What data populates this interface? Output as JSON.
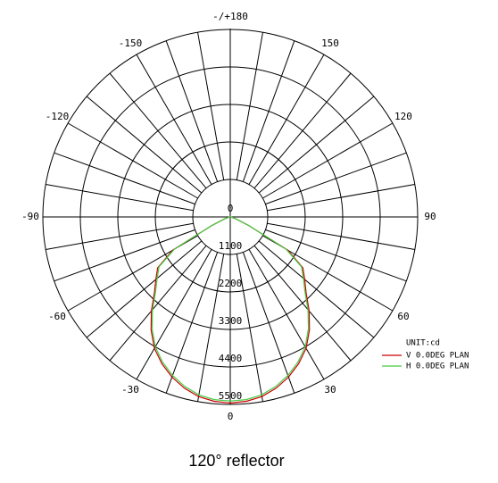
{
  "chart_data": {
    "type": "polar",
    "title": "120°  reflector",
    "unit_label": "UNIT:cd",
    "x": [
      -90,
      -85,
      -80,
      -75,
      -70,
      -65,
      -60,
      -55,
      -50,
      -45,
      -40,
      -35,
      -30,
      -25,
      -20,
      -15,
      -10,
      -5,
      0,
      5,
      10,
      15,
      20,
      25,
      30,
      35,
      40,
      45,
      50,
      55,
      60,
      65,
      70,
      75,
      80,
      85,
      90
    ],
    "series": [
      {
        "name": "V 0.0DEG PLAN",
        "color": "#cc0000",
        "values": [
          0,
          10,
          30,
          80,
          200,
          600,
          1950,
          2600,
          2850,
          3150,
          3600,
          4050,
          4450,
          4750,
          5000,
          5200,
          5350,
          5430,
          5460,
          5430,
          5350,
          5200,
          5000,
          4750,
          4450,
          4050,
          3600,
          3150,
          2850,
          2600,
          1950,
          600,
          200,
          80,
          30,
          10,
          0
        ]
      },
      {
        "name": "H 0.0DEG PLAN",
        "color": "#44cc44",
        "values": [
          0,
          10,
          30,
          80,
          200,
          600,
          1900,
          2550,
          2800,
          3100,
          3550,
          4000,
          4400,
          4700,
          4950,
          5150,
          5300,
          5380,
          5400,
          5380,
          5300,
          5150,
          4950,
          4700,
          4400,
          4000,
          3550,
          3100,
          2800,
          2550,
          1900,
          600,
          200,
          80,
          30,
          10,
          0
        ]
      }
    ],
    "rlim": [
      0,
      5500
    ],
    "rticks": [
      0,
      1100,
      2200,
      3300,
      4400,
      5500
    ],
    "thetaticks": [
      0,
      30,
      60,
      90,
      120,
      150,
      {
        "value": 180,
        "label": "-/+180"
      },
      -150,
      -120,
      -90,
      -60,
      -30
    ],
    "theta_grid_step": 10,
    "grid": true
  }
}
